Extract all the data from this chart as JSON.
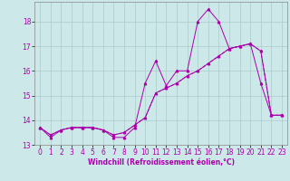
{
  "xlabel": "Windchill (Refroidissement éolien,°C)",
  "bg_color": "#cce8e8",
  "line_color": "#aa00aa",
  "grid_color": "#aacccc",
  "xlim": [
    -0.5,
    23.5
  ],
  "ylim": [
    13.0,
    18.8
  ],
  "yticks": [
    13,
    14,
    15,
    16,
    17,
    18
  ],
  "xticks": [
    0,
    1,
    2,
    3,
    4,
    5,
    6,
    7,
    8,
    9,
    10,
    11,
    12,
    13,
    14,
    15,
    16,
    17,
    18,
    19,
    20,
    21,
    22,
    23
  ],
  "series1_x": [
    0,
    1,
    2,
    3,
    4,
    5,
    6,
    7,
    8,
    9,
    10,
    11,
    12,
    13,
    14,
    15,
    16,
    17,
    18,
    19,
    20,
    21,
    22,
    23
  ],
  "series1_y": [
    13.7,
    13.3,
    13.6,
    13.7,
    13.7,
    13.7,
    13.6,
    13.3,
    13.3,
    13.7,
    15.5,
    16.4,
    15.4,
    16.0,
    16.0,
    18.0,
    18.5,
    18.0,
    16.9,
    17.0,
    17.1,
    15.5,
    14.2,
    14.2
  ],
  "series2_x": [
    0,
    1,
    2,
    3,
    4,
    5,
    6,
    7,
    8,
    9,
    10,
    11,
    12,
    13,
    14,
    15,
    16,
    17,
    18,
    19,
    20,
    21,
    22,
    23
  ],
  "series2_y": [
    13.7,
    13.4,
    13.6,
    13.7,
    13.7,
    13.7,
    13.6,
    13.4,
    13.5,
    13.8,
    14.1,
    15.1,
    15.3,
    15.5,
    15.8,
    16.0,
    16.3,
    16.6,
    16.9,
    17.0,
    17.1,
    16.8,
    14.2,
    14.2
  ],
  "series3_x": [
    0,
    1,
    2,
    3,
    4,
    5,
    6,
    7,
    8,
    9,
    10,
    11,
    12,
    13,
    14,
    15,
    16,
    17,
    18,
    19,
    20,
    21,
    22,
    23
  ],
  "series3_y": [
    13.7,
    13.4,
    13.6,
    13.7,
    13.7,
    13.7,
    13.6,
    13.4,
    13.5,
    13.8,
    14.1,
    15.1,
    15.3,
    15.5,
    15.8,
    16.0,
    16.3,
    16.6,
    16.9,
    17.0,
    17.1,
    16.8,
    14.2,
    14.2
  ],
  "tick_fontsize": 5.5,
  "xlabel_fontsize": 5.5
}
